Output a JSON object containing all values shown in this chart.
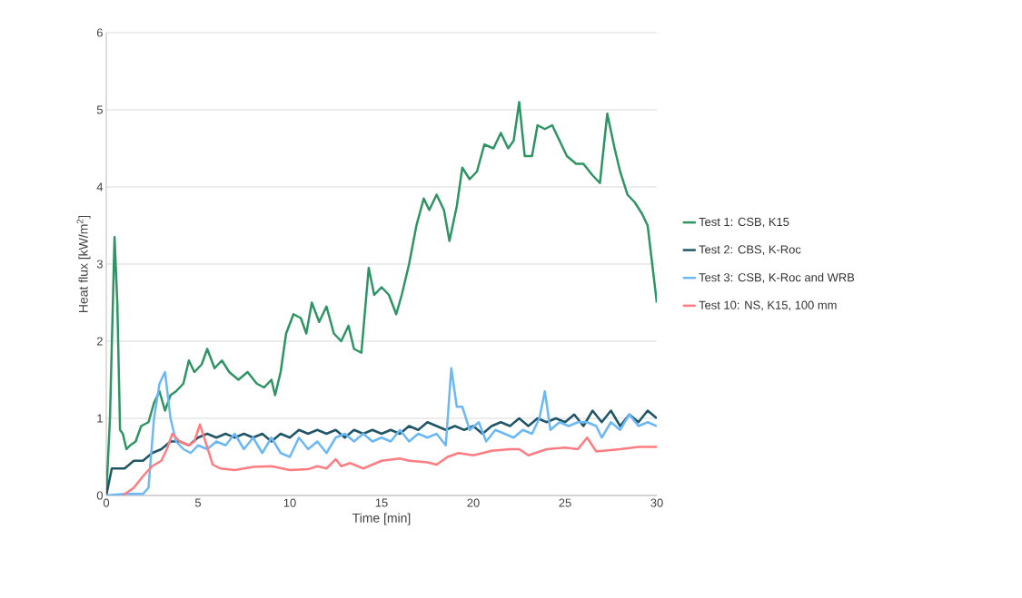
{
  "chart_data": {
    "type": "line",
    "xlabel": "Time [min]",
    "ylabel": "Heat flux [kW/m$^{2}$]",
    "xlim": [
      0,
      30
    ],
    "ylim": [
      0,
      6
    ],
    "xticks": [
      0,
      5,
      10,
      15,
      20,
      25,
      30
    ],
    "yticks": [
      0,
      1,
      2,
      3,
      4,
      5,
      6
    ],
    "grid": "y",
    "legend": "right",
    "line_style": "solid",
    "marker": "none",
    "series": [
      {
        "name": "Test 1: CSB, K15",
        "color": "#2e9464",
        "x": [
          0,
          0.2,
          0.45,
          0.6,
          0.75,
          0.9,
          1.1,
          1.3,
          1.6,
          1.9,
          2.3,
          2.6,
          2.9,
          3.2,
          3.5,
          3.8,
          4.2,
          4.5,
          4.8,
          5.2,
          5.5,
          5.9,
          6.3,
          6.7,
          7.2,
          7.7,
          8.2,
          8.6,
          9.0,
          9.2,
          9.5,
          9.8,
          10.2,
          10.6,
          10.9,
          11.2,
          11.6,
          12.0,
          12.4,
          12.8,
          13.2,
          13.5,
          13.9,
          14.3,
          14.6,
          15.0,
          15.4,
          15.8,
          16.1,
          16.5,
          16.9,
          17.3,
          17.6,
          18.0,
          18.4,
          18.7,
          19.1,
          19.4,
          19.8,
          20.2,
          20.6,
          21.1,
          21.5,
          21.9,
          22.2,
          22.5,
          22.8,
          23.2,
          23.5,
          23.9,
          24.3,
          24.7,
          25.1,
          25.6,
          26.0,
          26.5,
          26.9,
          27.3,
          27.7,
          28.0,
          28.4,
          28.8,
          29.2,
          29.5,
          29.8,
          30
        ],
        "values": [
          0,
          1.0,
          3.35,
          2.5,
          0.85,
          0.8,
          0.6,
          0.65,
          0.7,
          0.9,
          0.95,
          1.2,
          1.35,
          1.1,
          1.3,
          1.35,
          1.45,
          1.75,
          1.6,
          1.7,
          1.9,
          1.65,
          1.75,
          1.6,
          1.5,
          1.6,
          1.45,
          1.4,
          1.5,
          1.3,
          1.6,
          2.1,
          2.35,
          2.3,
          2.1,
          2.5,
          2.25,
          2.45,
          2.1,
          2.0,
          2.2,
          1.9,
          1.85,
          2.95,
          2.6,
          2.7,
          2.6,
          2.35,
          2.6,
          3.0,
          3.5,
          3.85,
          3.7,
          3.9,
          3.7,
          3.3,
          3.75,
          4.25,
          4.1,
          4.2,
          4.55,
          4.5,
          4.7,
          4.5,
          4.6,
          5.1,
          4.4,
          4.4,
          4.8,
          4.75,
          4.8,
          4.6,
          4.4,
          4.3,
          4.3,
          4.15,
          4.05,
          4.95,
          4.5,
          4.2,
          3.9,
          3.8,
          3.65,
          3.5,
          2.9,
          2.5
        ]
      },
      {
        "name": "Test 2: CBS, K-Roc",
        "color": "#1f5566",
        "x": [
          0,
          0.3,
          0.6,
          1.0,
          1.5,
          2.0,
          2.5,
          3.0,
          3.5,
          4.0,
          4.5,
          5.0,
          5.5,
          6.0,
          6.5,
          7.0,
          7.5,
          8.0,
          8.5,
          9.0,
          9.5,
          10.0,
          10.5,
          11.0,
          11.5,
          12.0,
          12.5,
          13.0,
          13.5,
          14.0,
          14.5,
          15.0,
          15.5,
          16.0,
          16.5,
          17.0,
          17.5,
          18.0,
          18.5,
          19.0,
          19.5,
          20.0,
          20.5,
          21.0,
          21.5,
          22.0,
          22.5,
          23.0,
          23.5,
          24.0,
          24.5,
          25.0,
          25.5,
          26.0,
          26.5,
          27.0,
          27.5,
          28.0,
          28.5,
          29.0,
          29.5,
          30
        ],
        "values": [
          0,
          0.35,
          0.35,
          0.35,
          0.45,
          0.45,
          0.55,
          0.6,
          0.7,
          0.7,
          0.65,
          0.75,
          0.8,
          0.75,
          0.8,
          0.75,
          0.8,
          0.75,
          0.8,
          0.7,
          0.8,
          0.75,
          0.85,
          0.8,
          0.85,
          0.8,
          0.85,
          0.75,
          0.85,
          0.8,
          0.85,
          0.8,
          0.85,
          0.8,
          0.9,
          0.85,
          0.95,
          0.9,
          0.85,
          0.9,
          0.85,
          0.9,
          0.8,
          0.9,
          0.95,
          0.9,
          1.0,
          0.9,
          1.0,
          0.95,
          1.0,
          0.95,
          1.05,
          0.9,
          1.1,
          0.95,
          1.1,
          0.9,
          1.05,
          0.95,
          1.1,
          1.0
        ]
      },
      {
        "name": "Test 3: CSB, K-Roc and WRB",
        "color": "#6cb8f5",
        "x": [
          0,
          1,
          2.0,
          2.3,
          2.6,
          2.9,
          3.2,
          3.5,
          3.8,
          4.2,
          4.6,
          5.0,
          5.5,
          6.0,
          6.5,
          7.0,
          7.5,
          8.0,
          8.5,
          9.0,
          9.5,
          10.0,
          10.5,
          11.0,
          11.5,
          12.0,
          12.5,
          13.0,
          13.5,
          14.0,
          14.5,
          15.0,
          15.5,
          16.0,
          16.5,
          17.0,
          17.5,
          18.0,
          18.5,
          18.8,
          19.1,
          19.4,
          19.8,
          20.3,
          20.7,
          21.2,
          21.7,
          22.2,
          22.7,
          23.2,
          23.6,
          23.9,
          24.2,
          24.7,
          25.2,
          25.7,
          26.2,
          26.7,
          27.0,
          27.5,
          28.0,
          28.5,
          29.0,
          29.5,
          30
        ],
        "values": [
          0,
          0.02,
          0.02,
          0.1,
          1.0,
          1.45,
          1.6,
          1.0,
          0.7,
          0.6,
          0.55,
          0.65,
          0.6,
          0.7,
          0.65,
          0.8,
          0.6,
          0.75,
          0.55,
          0.75,
          0.55,
          0.5,
          0.75,
          0.6,
          0.7,
          0.55,
          0.75,
          0.8,
          0.7,
          0.8,
          0.7,
          0.75,
          0.7,
          0.85,
          0.7,
          0.8,
          0.75,
          0.8,
          0.65,
          1.65,
          1.15,
          1.15,
          0.85,
          0.95,
          0.7,
          0.85,
          0.8,
          0.75,
          0.85,
          0.8,
          1.0,
          1.35,
          0.85,
          0.95,
          0.9,
          0.95,
          0.95,
          0.9,
          0.75,
          0.95,
          0.85,
          1.05,
          0.9,
          0.95,
          0.9
        ]
      },
      {
        "name": "Test 10: NS, K15, 100 mm",
        "color": "#ff7c80",
        "x": [
          0.9,
          1.5,
          2.0,
          2.5,
          3.0,
          3.3,
          3.6,
          4.0,
          4.5,
          4.8,
          5.1,
          5.4,
          5.8,
          6.2,
          7,
          8,
          9,
          10,
          11,
          11.5,
          12,
          12.5,
          12.8,
          13.3,
          14,
          15,
          16,
          16.5,
          17.5,
          18,
          18.6,
          19.2,
          20,
          21,
          22,
          22.5,
          23,
          24,
          25,
          25.7,
          26.2,
          26.7,
          28,
          29,
          30
        ],
        "values": [
          0,
          0.1,
          0.25,
          0.38,
          0.45,
          0.6,
          0.8,
          0.7,
          0.65,
          0.7,
          0.92,
          0.7,
          0.4,
          0.35,
          0.33,
          0.37,
          0.38,
          0.33,
          0.34,
          0.38,
          0.35,
          0.47,
          0.38,
          0.42,
          0.35,
          0.45,
          0.48,
          0.45,
          0.43,
          0.4,
          0.5,
          0.55,
          0.52,
          0.58,
          0.6,
          0.6,
          0.52,
          0.6,
          0.62,
          0.6,
          0.75,
          0.57,
          0.6,
          0.63,
          0.63
        ]
      }
    ]
  }
}
